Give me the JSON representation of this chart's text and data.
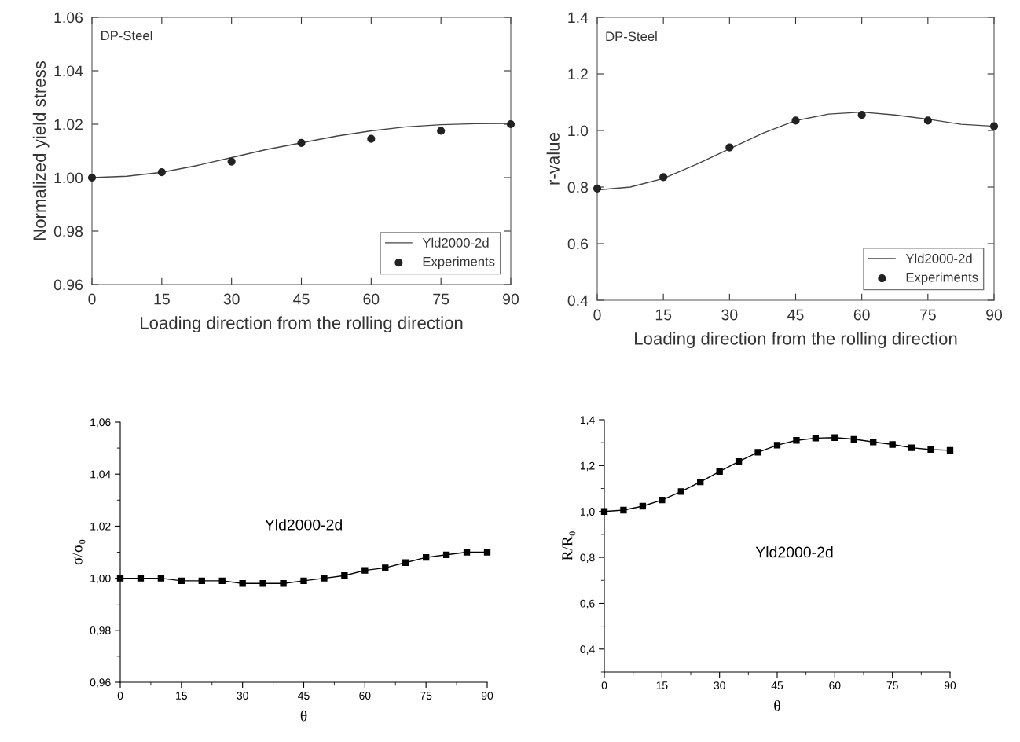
{
  "chart_data": [
    {
      "type": "line",
      "xlabel": "Loading direction from the rolling direction",
      "ylabel": "Normalized yield stress",
      "annotations": [
        "DP-Steel"
      ],
      "xlim": [
        0,
        90
      ],
      "xticks": [
        0,
        15,
        30,
        45,
        60,
        75,
        90
      ],
      "ylim": [
        0.96,
        1.06
      ],
      "yticks": [
        {
          "value": 0.96,
          "label": "0.96"
        },
        {
          "value": 0.98,
          "label": "0.98"
        },
        {
          "value": 1.0,
          "label": "1.00"
        },
        {
          "value": 1.02,
          "label": "1.02"
        },
        {
          "value": 1.04,
          "label": "1.04"
        },
        {
          "value": 1.06,
          "label": "1.06"
        }
      ],
      "legend": "bottom right",
      "grid": false,
      "series": [
        {
          "name": "Yld2000-2d",
          "type": "line",
          "color": "#444444",
          "marker": "none",
          "x": [
            0,
            7.5,
            15,
            22.5,
            30,
            37.5,
            45,
            52.5,
            60,
            67.5,
            75,
            82.5,
            90
          ],
          "values": [
            1.0,
            1.0005,
            1.002,
            1.0045,
            1.0075,
            1.0105,
            1.013,
            1.0155,
            1.0175,
            1.019,
            1.0198,
            1.0202,
            1.0203
          ]
        },
        {
          "name": "Experiments",
          "type": "scatter",
          "color": "#222222",
          "marker": "circle",
          "x": [
            0,
            15,
            30,
            45,
            60,
            75,
            90
          ],
          "values": [
            1.0,
            1.002,
            1.006,
            1.013,
            1.0145,
            1.0175,
            1.02
          ]
        }
      ]
    },
    {
      "type": "line",
      "xlabel": "Loading direction from the rolling direction",
      "ylabel": "r-value",
      "annotations": [
        "DP-Steel"
      ],
      "xlim": [
        0,
        90
      ],
      "xticks": [
        0,
        15,
        30,
        45,
        60,
        75,
        90
      ],
      "ylim": [
        0.4,
        1.4
      ],
      "yticks": [
        {
          "value": 0.4,
          "label": "0.4"
        },
        {
          "value": 0.6,
          "label": "0.6"
        },
        {
          "value": 0.8,
          "label": "0.8"
        },
        {
          "value": 1.0,
          "label": "1.0"
        },
        {
          "value": 1.2,
          "label": "1.2"
        },
        {
          "value": 1.4,
          "label": "1.4"
        }
      ],
      "legend": "bottom right",
      "grid": false,
      "series": [
        {
          "name": "Yld2000-2d",
          "type": "line",
          "color": "#444444",
          "marker": "none",
          "x": [
            0,
            7.5,
            15,
            22.5,
            30,
            37.5,
            45,
            52.5,
            60,
            67.5,
            75,
            82.5,
            90
          ],
          "values": [
            0.79,
            0.8,
            0.83,
            0.88,
            0.935,
            0.99,
            1.035,
            1.058,
            1.065,
            1.055,
            1.04,
            1.022,
            1.015
          ]
        },
        {
          "name": "Experiments",
          "type": "scatter",
          "color": "#222222",
          "marker": "circle",
          "x": [
            0,
            15,
            30,
            45,
            60,
            75,
            90
          ],
          "values": [
            0.795,
            0.835,
            0.94,
            1.035,
            1.055,
            1.035,
            1.015
          ]
        }
      ]
    },
    {
      "type": "line",
      "xlabel": "θ",
      "ylabel": "σ/σ₀",
      "annotations": [
        "Yld2000-2d"
      ],
      "xlim": [
        0,
        90
      ],
      "xticks": [
        0,
        15,
        30,
        45,
        60,
        75,
        90
      ],
      "ylim": [
        0.96,
        1.06
      ],
      "yticks": [
        {
          "value": 0.96,
          "label": "0,96"
        },
        {
          "value": 0.98,
          "label": "0,98"
        },
        {
          "value": 1.0,
          "label": "1,00"
        },
        {
          "value": 1.02,
          "label": "1,02"
        },
        {
          "value": 1.04,
          "label": "1,04"
        },
        {
          "value": 1.06,
          "label": "1,06"
        }
      ],
      "grid": false,
      "marker": "square",
      "series": [
        {
          "color": "#000000",
          "x": [
            0,
            5,
            10,
            15,
            20,
            25,
            30,
            35,
            40,
            45,
            50,
            55,
            60,
            65,
            70,
            75,
            80,
            85,
            90
          ],
          "values": [
            1.0,
            1.0,
            1.0,
            0.999,
            0.999,
            0.999,
            0.998,
            0.998,
            0.998,
            0.999,
            1.0,
            1.001,
            1.003,
            1.004,
            1.006,
            1.008,
            1.009,
            1.01,
            1.01
          ]
        }
      ]
    },
    {
      "type": "line",
      "xlabel": "θ",
      "ylabel": "R/R₀",
      "annotations": [
        "Yld2000-2d"
      ],
      "xlim": [
        0,
        90
      ],
      "xticks": [
        0,
        15,
        30,
        45,
        60,
        75,
        90
      ],
      "ylim": [
        0.3,
        1.4
      ],
      "yticks": [
        {
          "value": 0.4,
          "label": "0,4"
        },
        {
          "value": 0.6,
          "label": "0,6"
        },
        {
          "value": 0.8,
          "label": "0,8"
        },
        {
          "value": 1.0,
          "label": "1,0"
        },
        {
          "value": 1.2,
          "label": "1,2"
        },
        {
          "value": 1.4,
          "label": "1,4"
        }
      ],
      "grid": false,
      "marker": "square",
      "series": [
        {
          "color": "#000000",
          "x": [
            0,
            5,
            10,
            15,
            20,
            25,
            30,
            35,
            40,
            45,
            50,
            55,
            60,
            65,
            70,
            75,
            80,
            85,
            90
          ],
          "values": [
            1.0,
            1.006,
            1.023,
            1.05,
            1.087,
            1.129,
            1.174,
            1.218,
            1.258,
            1.289,
            1.31,
            1.32,
            1.322,
            1.315,
            1.303,
            1.292,
            1.278,
            1.27,
            1.267
          ]
        }
      ]
    }
  ]
}
